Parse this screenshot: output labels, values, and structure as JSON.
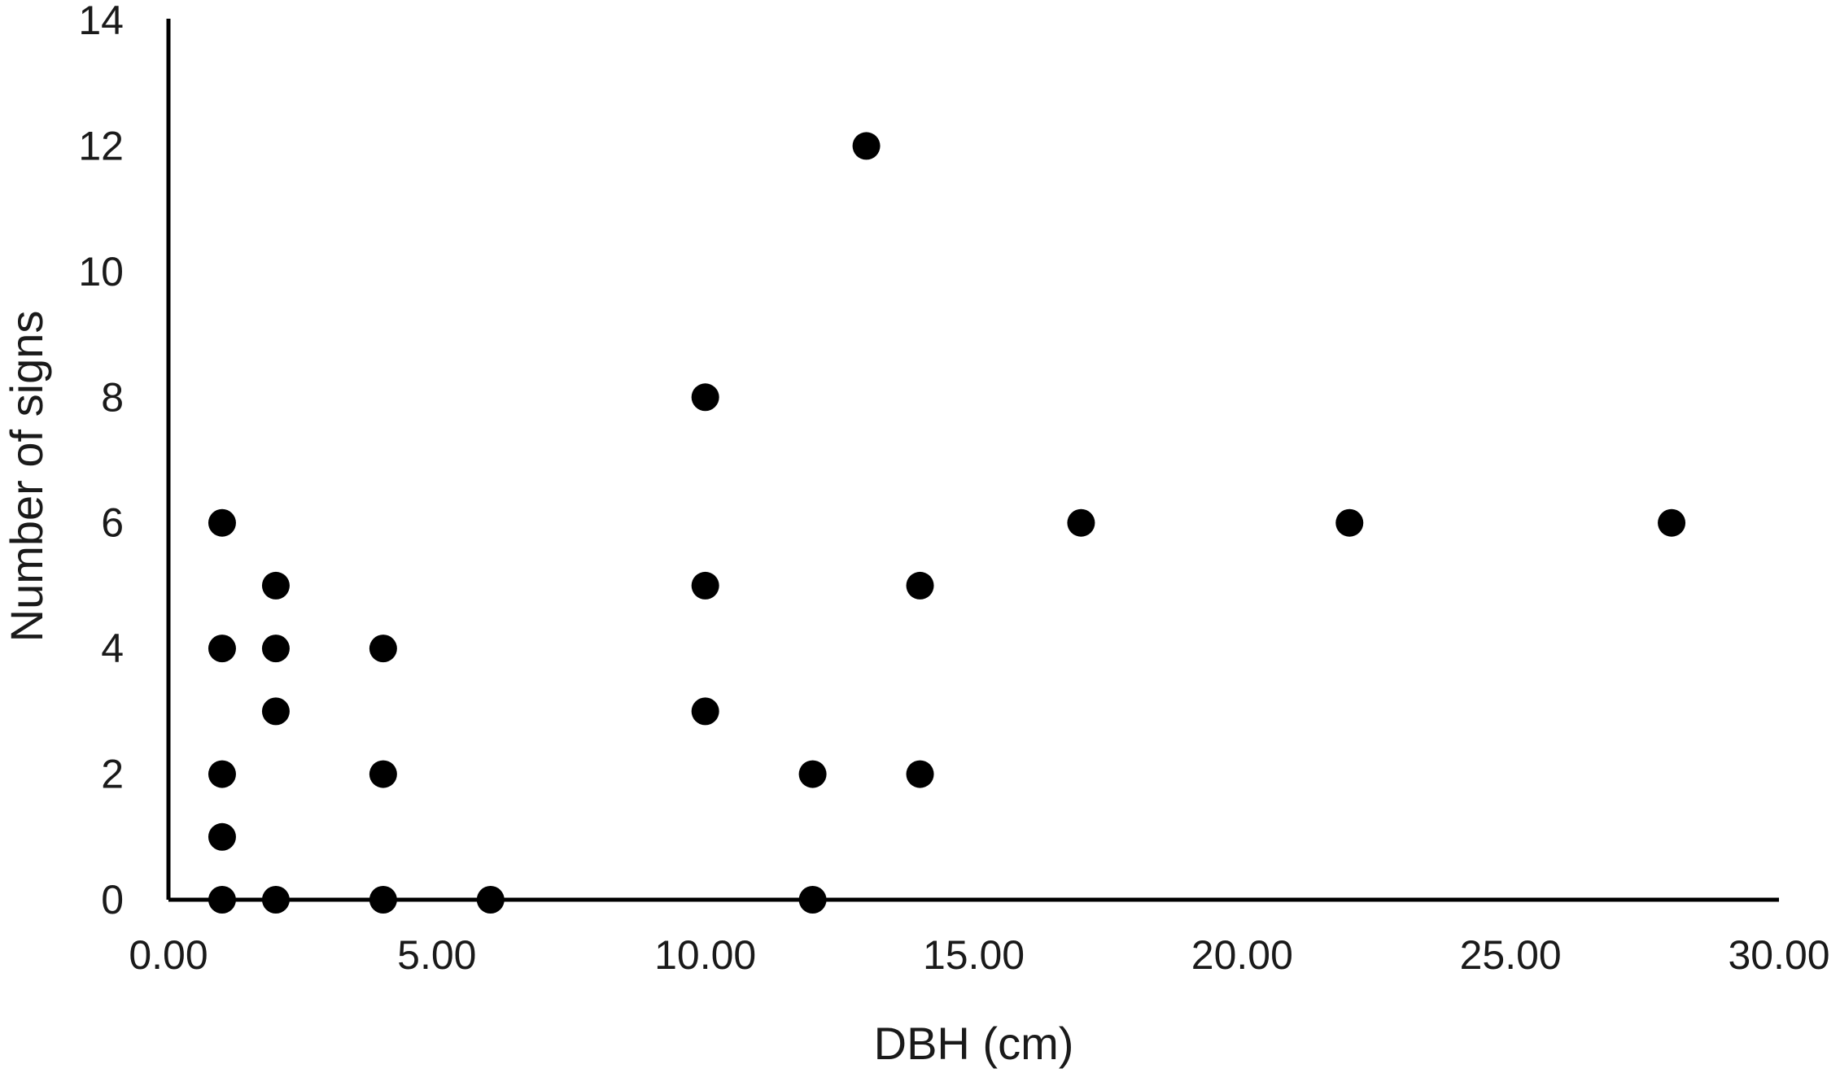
{
  "chart_data": {
    "type": "scatter",
    "xlabel": "DBH (cm)",
    "ylabel": "Number of signs",
    "xlim": [
      0,
      30
    ],
    "ylim": [
      0,
      14
    ],
    "x_ticks": [
      0,
      5,
      10,
      15,
      20,
      25,
      30
    ],
    "x_tick_labels": [
      "0.00",
      "5.00",
      "10.00",
      "15.00",
      "20.00",
      "25.00",
      "30.00"
    ],
    "y_ticks": [
      0,
      2,
      4,
      6,
      8,
      10,
      12,
      14
    ],
    "y_tick_labels": [
      "0",
      "2",
      "4",
      "6",
      "8",
      "10",
      "12",
      "14"
    ],
    "grid": false,
    "legend": "none",
    "marker_color": "#000000",
    "points": [
      {
        "x": 1,
        "y": 0
      },
      {
        "x": 1,
        "y": 1
      },
      {
        "x": 1,
        "y": 2
      },
      {
        "x": 1,
        "y": 4
      },
      {
        "x": 1,
        "y": 6
      },
      {
        "x": 2,
        "y": 0
      },
      {
        "x": 2,
        "y": 3
      },
      {
        "x": 2,
        "y": 4
      },
      {
        "x": 2,
        "y": 5
      },
      {
        "x": 4,
        "y": 0
      },
      {
        "x": 4,
        "y": 2
      },
      {
        "x": 4,
        "y": 4
      },
      {
        "x": 6,
        "y": 0
      },
      {
        "x": 10,
        "y": 3
      },
      {
        "x": 10,
        "y": 5
      },
      {
        "x": 10,
        "y": 8
      },
      {
        "x": 12,
        "y": 0
      },
      {
        "x": 12,
        "y": 2
      },
      {
        "x": 13,
        "y": 12
      },
      {
        "x": 14,
        "y": 2
      },
      {
        "x": 14,
        "y": 5
      },
      {
        "x": 17,
        "y": 6
      },
      {
        "x": 22,
        "y": 6
      },
      {
        "x": 28,
        "y": 6
      }
    ]
  }
}
